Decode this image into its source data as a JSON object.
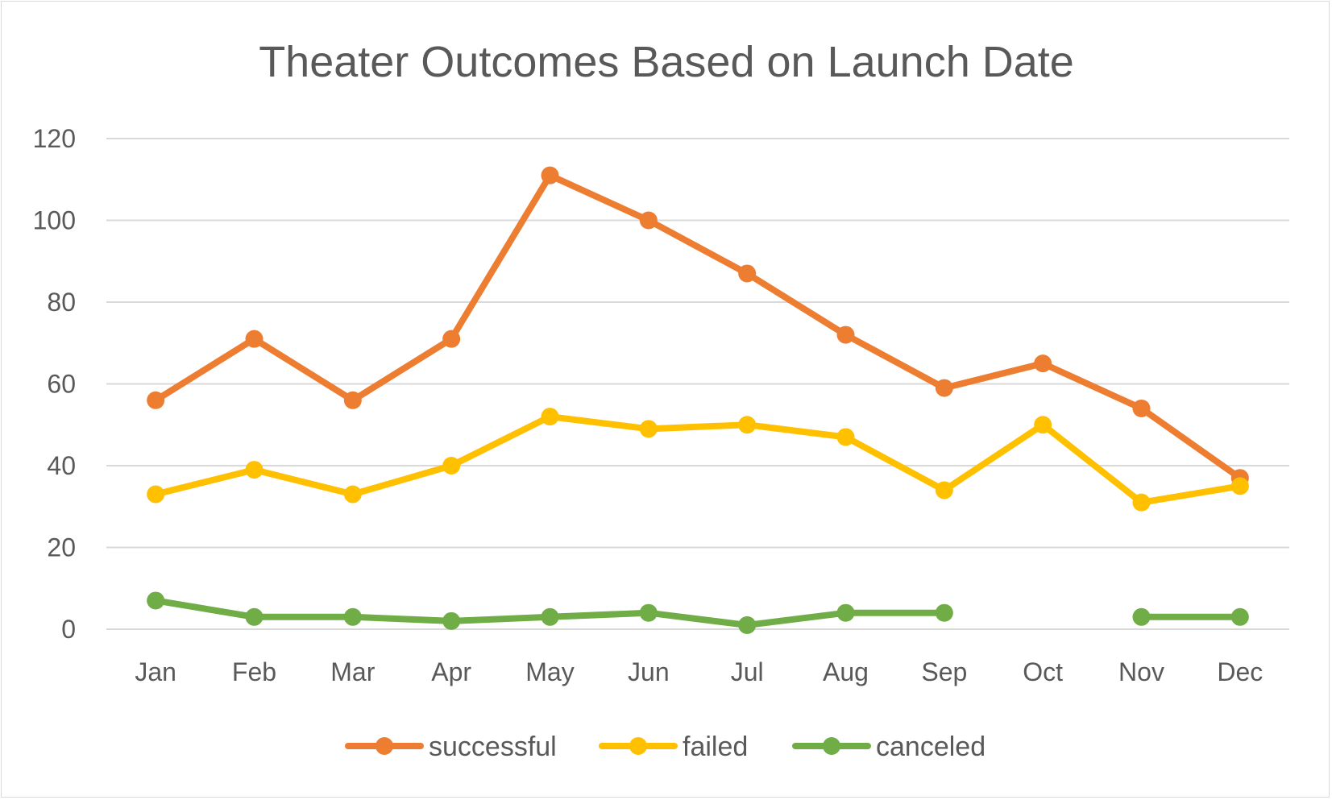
{
  "chart_data": {
    "type": "line",
    "title": "Theater Outcomes Based on Launch Date",
    "categories": [
      "Jan",
      "Feb",
      "Mar",
      "Apr",
      "May",
      "Jun",
      "Jul",
      "Aug",
      "Sep",
      "Oct",
      "Nov",
      "Dec"
    ],
    "series": [
      {
        "name": "successful",
        "color": "#ed7d31",
        "values": [
          56,
          71,
          56,
          71,
          111,
          100,
          87,
          72,
          59,
          65,
          54,
          37
        ]
      },
      {
        "name": "failed",
        "color": "#ffc000",
        "values": [
          33,
          39,
          33,
          40,
          52,
          49,
          50,
          47,
          34,
          50,
          31,
          35
        ]
      },
      {
        "name": "canceled",
        "color": "#70ad47",
        "values": [
          7,
          3,
          3,
          2,
          3,
          4,
          1,
          4,
          4,
          null,
          3,
          3
        ]
      }
    ],
    "ylim": [
      0,
      120
    ],
    "yticks": [
      0,
      20,
      40,
      60,
      80,
      100,
      120
    ],
    "grid": true,
    "legend": "bottom"
  }
}
